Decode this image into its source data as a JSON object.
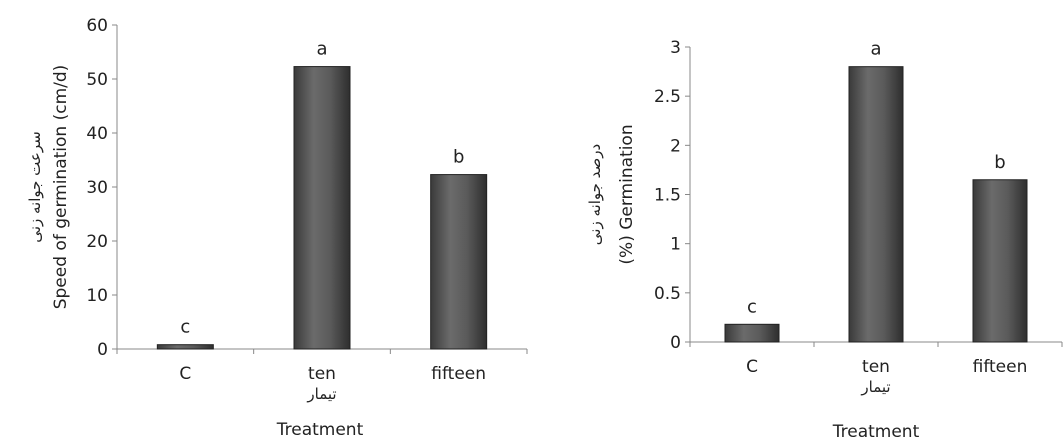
{
  "charts": [
    {
      "chart_data": {
        "type": "bar",
        "categories": [
          "C",
          "ten",
          "fifteen"
        ],
        "values": [
          0.8,
          52.3,
          32.3
        ],
        "letters": [
          "c",
          "a",
          "b"
        ],
        "ylim": [
          0,
          60
        ],
        "yticks": [
          "0",
          "10",
          "20",
          "30",
          "40",
          "50",
          "60"
        ],
        "xlabel": "Treatment",
        "xlabel_fa": "تیمار",
        "ylabel": "Speed of germination (cm/d)",
        "ylabel_fa": "سرعت جوانه زنی",
        "grid": false,
        "legend": "none",
        "bar_color": "#555555"
      }
    },
    {
      "chart_data": {
        "type": "bar",
        "categories": [
          "C",
          "ten",
          "fifteen"
        ],
        "values": [
          0.18,
          2.8,
          1.65
        ],
        "letters": [
          "c",
          "a",
          "b"
        ],
        "ylim": [
          0,
          3
        ],
        "yticks": [
          "0",
          "0.5",
          "1",
          "1.5",
          "2",
          "2.5",
          "3"
        ],
        "xlabel": "Treatment",
        "xlabel_fa": "تیمار",
        "ylabel": "(%) Germination",
        "ylabel_fa": "درصد جوانه زنی",
        "grid": false,
        "legend": "none",
        "bar_color": "#555555"
      }
    }
  ]
}
